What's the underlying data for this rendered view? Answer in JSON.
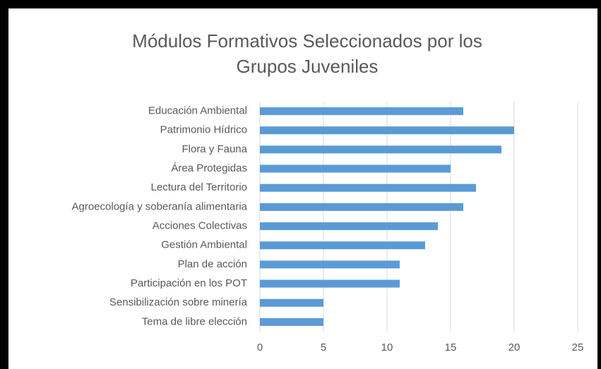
{
  "chart_data": {
    "type": "barh",
    "title": "Módulos Formativos Seleccionados por los Grupos Juveniles",
    "categories": [
      "Educación Ambiental",
      "Patrimonio Hídrico",
      "Flora y Fauna",
      "Área Protegidas",
      "Lectura del Territorio",
      "Agroecología y soberanía alimentaria",
      "Acciones Colectivas",
      "Gestión Ambiental",
      "Plan de acción",
      "Participación en los POT",
      "Sensibilización sobre minería",
      "Tema de libre elección"
    ],
    "values": [
      16,
      20,
      19,
      15,
      17,
      16,
      14,
      13,
      11,
      11,
      5,
      5
    ],
    "color": "#5b9bd5",
    "xlim": [
      0,
      25
    ],
    "xticks": [
      0,
      5,
      10,
      15,
      20,
      25
    ],
    "grid": true
  }
}
